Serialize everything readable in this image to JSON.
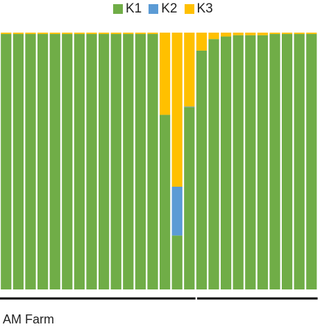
{
  "chart_data": {
    "type": "bar",
    "stacked": true,
    "normalized": true,
    "ylim": [
      0,
      1
    ],
    "grid": false,
    "legend_position": "top-center",
    "series": [
      {
        "name": "K1",
        "color": "#70AD47",
        "values": [
          0.995,
          0.995,
          0.995,
          0.995,
          0.995,
          0.995,
          0.995,
          0.995,
          0.995,
          0.995,
          0.995,
          0.995,
          0.995,
          0.68,
          0.21,
          0.71,
          0.93,
          0.975,
          0.985,
          0.99,
          0.99,
          0.99,
          0.995,
          0.995,
          0.995,
          0.995
        ]
      },
      {
        "name": "K2",
        "color": "#5B9BD5",
        "values": [
          0,
          0,
          0,
          0,
          0,
          0,
          0,
          0,
          0,
          0,
          0,
          0,
          0,
          0,
          0.19,
          0.002,
          0,
          0,
          0,
          0,
          0,
          0,
          0,
          0,
          0,
          0
        ]
      },
      {
        "name": "K3",
        "color": "#FFC000",
        "values": [
          0.005,
          0.005,
          0.005,
          0.005,
          0.005,
          0.005,
          0.005,
          0.005,
          0.005,
          0.005,
          0.005,
          0.005,
          0.005,
          0.32,
          0.6,
          0.288,
          0.07,
          0.025,
          0.015,
          0.01,
          0.01,
          0.01,
          0.005,
          0.005,
          0.005,
          0.005
        ]
      }
    ],
    "groups": [
      {
        "label": "AM Farm",
        "start": 0,
        "end": 15
      },
      {
        "label": "",
        "start": 16,
        "end": 25
      }
    ]
  }
}
